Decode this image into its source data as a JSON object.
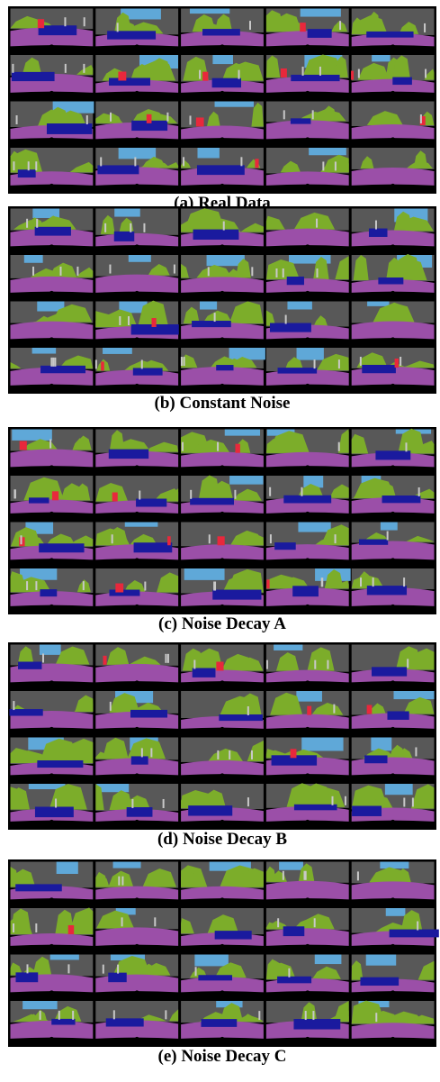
{
  "figure": {
    "panels": [
      {
        "caption": "(a) Real Data"
      },
      {
        "caption": "(b) Constant Noise"
      },
      {
        "caption": "(c) Noise Decay A"
      },
      {
        "caption": "(d) Noise Decay B"
      },
      {
        "caption": "(e) Noise Decay C"
      }
    ]
  }
}
